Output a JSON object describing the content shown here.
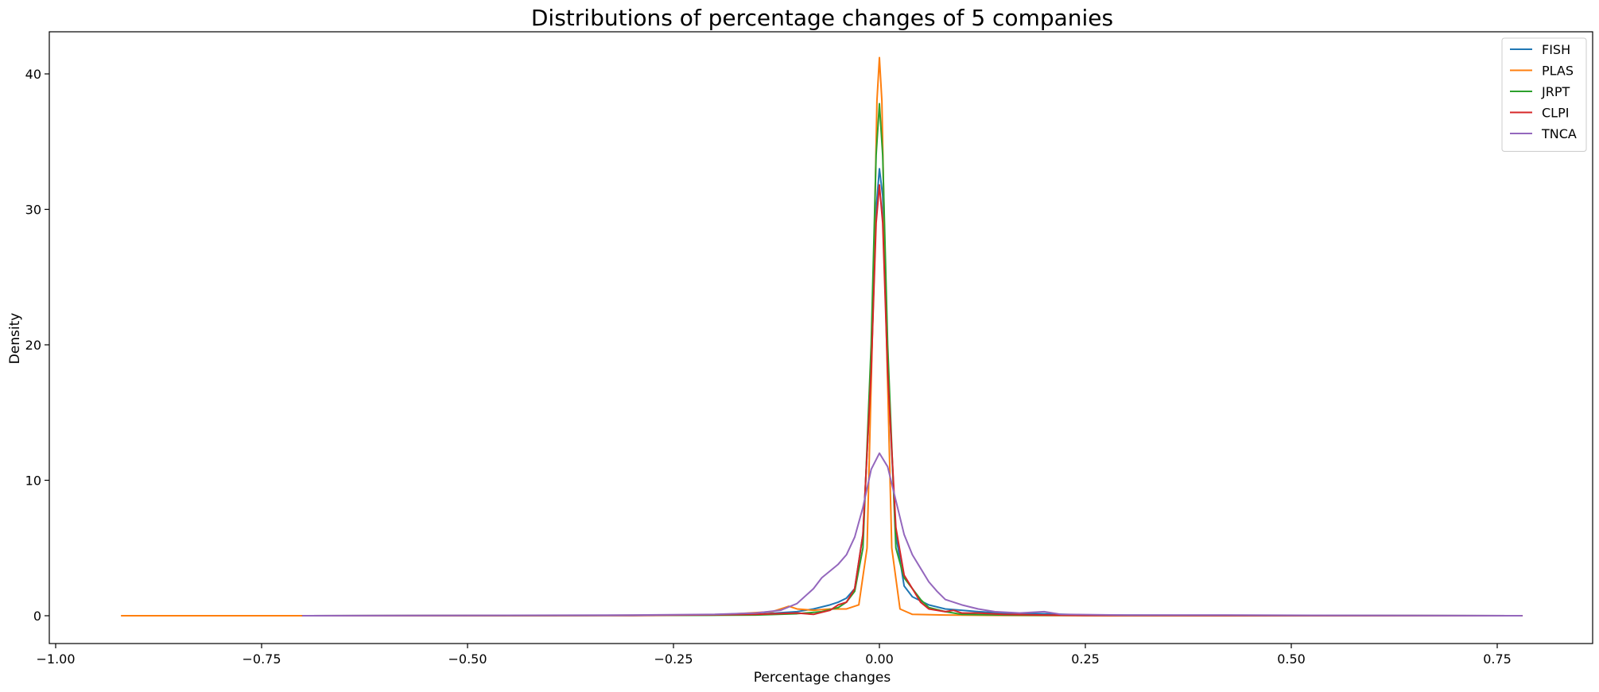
{
  "chart_data": {
    "type": "line",
    "title": "Distributions of percentage changes of 5 companies",
    "xlabel": "Percentage changes",
    "ylabel": "Density",
    "xlim": [
      -1.0,
      0.78
    ],
    "ylim": [
      -2,
      43
    ],
    "xticks": [
      -1.0,
      -0.75,
      -0.5,
      -0.25,
      0.0,
      0.25,
      0.5,
      0.75
    ],
    "xtick_labels": [
      "−1.00",
      "−0.75",
      "−0.50",
      "−0.25",
      "0.00",
      "0.25",
      "0.50",
      "0.75"
    ],
    "yticks": [
      0,
      10,
      20,
      30,
      40
    ],
    "ytick_labels": [
      "0",
      "10",
      "20",
      "30",
      "40"
    ],
    "grid": false,
    "legend_position": "top-right",
    "series": [
      {
        "name": "FISH",
        "color": "#1f77b4",
        "points": [
          [
            -0.7,
            0
          ],
          [
            -0.3,
            0.02
          ],
          [
            -0.2,
            0.05
          ],
          [
            -0.15,
            0.1
          ],
          [
            -0.1,
            0.3
          ],
          [
            -0.08,
            0.5
          ],
          [
            -0.06,
            0.8
          ],
          [
            -0.05,
            1.0
          ],
          [
            -0.04,
            1.3
          ],
          [
            -0.03,
            2.0
          ],
          [
            -0.02,
            6.0
          ],
          [
            -0.01,
            18.0
          ],
          [
            -0.004,
            30.0
          ],
          [
            0.0,
            33.0
          ],
          [
            0.004,
            31.0
          ],
          [
            0.01,
            18.0
          ],
          [
            0.02,
            6.0
          ],
          [
            0.03,
            2.2
          ],
          [
            0.04,
            1.4
          ],
          [
            0.06,
            0.8
          ],
          [
            0.08,
            0.5
          ],
          [
            0.1,
            0.4
          ],
          [
            0.12,
            0.3
          ],
          [
            0.15,
            0.2
          ],
          [
            0.2,
            0.15
          ],
          [
            0.25,
            0.05
          ],
          [
            0.4,
            0.02
          ],
          [
            0.78,
            0
          ]
        ]
      },
      {
        "name": "PLAS",
        "color": "#ff7f0e",
        "points": [
          [
            -0.92,
            0
          ],
          [
            -0.5,
            0
          ],
          [
            -0.2,
            0.05
          ],
          [
            -0.13,
            0.3
          ],
          [
            -0.115,
            0.6
          ],
          [
            -0.11,
            0.7
          ],
          [
            -0.1,
            0.5
          ],
          [
            -0.08,
            0.4
          ],
          [
            -0.06,
            0.5
          ],
          [
            -0.04,
            0.5
          ],
          [
            -0.025,
            0.8
          ],
          [
            -0.015,
            5.0
          ],
          [
            -0.008,
            22.0
          ],
          [
            -0.003,
            38.0
          ],
          [
            0.0,
            41.2
          ],
          [
            0.003,
            38.0
          ],
          [
            0.008,
            22.0
          ],
          [
            0.015,
            5.0
          ],
          [
            0.025,
            0.5
          ],
          [
            0.04,
            0.1
          ],
          [
            0.08,
            0.05
          ],
          [
            0.15,
            0.02
          ],
          [
            0.3,
            0.0
          ],
          [
            0.78,
            0
          ]
        ]
      },
      {
        "name": "JRPT",
        "color": "#2ca02c",
        "points": [
          [
            -0.7,
            0
          ],
          [
            -0.3,
            0.02
          ],
          [
            -0.15,
            0.05
          ],
          [
            -0.1,
            0.15
          ],
          [
            -0.07,
            0.3
          ],
          [
            -0.05,
            0.6
          ],
          [
            -0.04,
            1.0
          ],
          [
            -0.03,
            1.8
          ],
          [
            -0.02,
            5.0
          ],
          [
            -0.01,
            20.0
          ],
          [
            -0.004,
            34.0
          ],
          [
            0.0,
            37.8
          ],
          [
            0.004,
            34.0
          ],
          [
            0.01,
            20.0
          ],
          [
            0.02,
            5.0
          ],
          [
            0.03,
            2.8
          ],
          [
            0.04,
            2.0
          ],
          [
            0.05,
            1.2
          ],
          [
            0.06,
            0.6
          ],
          [
            0.08,
            0.3
          ],
          [
            0.1,
            0.1
          ],
          [
            0.15,
            0.05
          ],
          [
            0.25,
            0.02
          ],
          [
            0.78,
            0
          ]
        ]
      },
      {
        "name": "CLPI",
        "color": "#d62728",
        "points": [
          [
            -0.7,
            0
          ],
          [
            -0.3,
            0.02
          ],
          [
            -0.15,
            0.1
          ],
          [
            -0.1,
            0.2
          ],
          [
            -0.08,
            0.1
          ],
          [
            -0.06,
            0.4
          ],
          [
            -0.05,
            0.8
          ],
          [
            -0.04,
            1.0
          ],
          [
            -0.03,
            2.0
          ],
          [
            -0.02,
            6.0
          ],
          [
            -0.01,
            18.0
          ],
          [
            -0.004,
            29.0
          ],
          [
            0.0,
            31.8
          ],
          [
            0.004,
            29.0
          ],
          [
            0.01,
            18.0
          ],
          [
            0.02,
            6.5
          ],
          [
            0.03,
            3.0
          ],
          [
            0.04,
            2.0
          ],
          [
            0.05,
            1.0
          ],
          [
            0.06,
            0.5
          ],
          [
            0.08,
            0.3
          ],
          [
            0.09,
            0.4
          ],
          [
            0.1,
            0.2
          ],
          [
            0.12,
            0.2
          ],
          [
            0.15,
            0.1
          ],
          [
            0.2,
            0.05
          ],
          [
            0.25,
            0.02
          ],
          [
            0.78,
            0
          ]
        ]
      },
      {
        "name": "TNCA",
        "color": "#9467bd",
        "points": [
          [
            -0.7,
            0
          ],
          [
            -0.5,
            0.02
          ],
          [
            -0.3,
            0.05
          ],
          [
            -0.2,
            0.1
          ],
          [
            -0.15,
            0.2
          ],
          [
            -0.12,
            0.4
          ],
          [
            -0.1,
            0.9
          ],
          [
            -0.08,
            2.0
          ],
          [
            -0.07,
            2.8
          ],
          [
            -0.06,
            3.3
          ],
          [
            -0.05,
            3.8
          ],
          [
            -0.04,
            4.5
          ],
          [
            -0.03,
            5.8
          ],
          [
            -0.02,
            8.0
          ],
          [
            -0.01,
            10.8
          ],
          [
            0.0,
            12.0
          ],
          [
            0.01,
            11.0
          ],
          [
            0.02,
            8.5
          ],
          [
            0.03,
            6.0
          ],
          [
            0.04,
            4.5
          ],
          [
            0.05,
            3.5
          ],
          [
            0.06,
            2.5
          ],
          [
            0.07,
            1.8
          ],
          [
            0.08,
            1.2
          ],
          [
            0.1,
            0.8
          ],
          [
            0.12,
            0.5
          ],
          [
            0.14,
            0.3
          ],
          [
            0.17,
            0.2
          ],
          [
            0.2,
            0.3
          ],
          [
            0.22,
            0.1
          ],
          [
            0.3,
            0.05
          ],
          [
            0.42,
            0.05
          ],
          [
            0.6,
            0.02
          ],
          [
            0.78,
            0
          ]
        ]
      }
    ]
  }
}
